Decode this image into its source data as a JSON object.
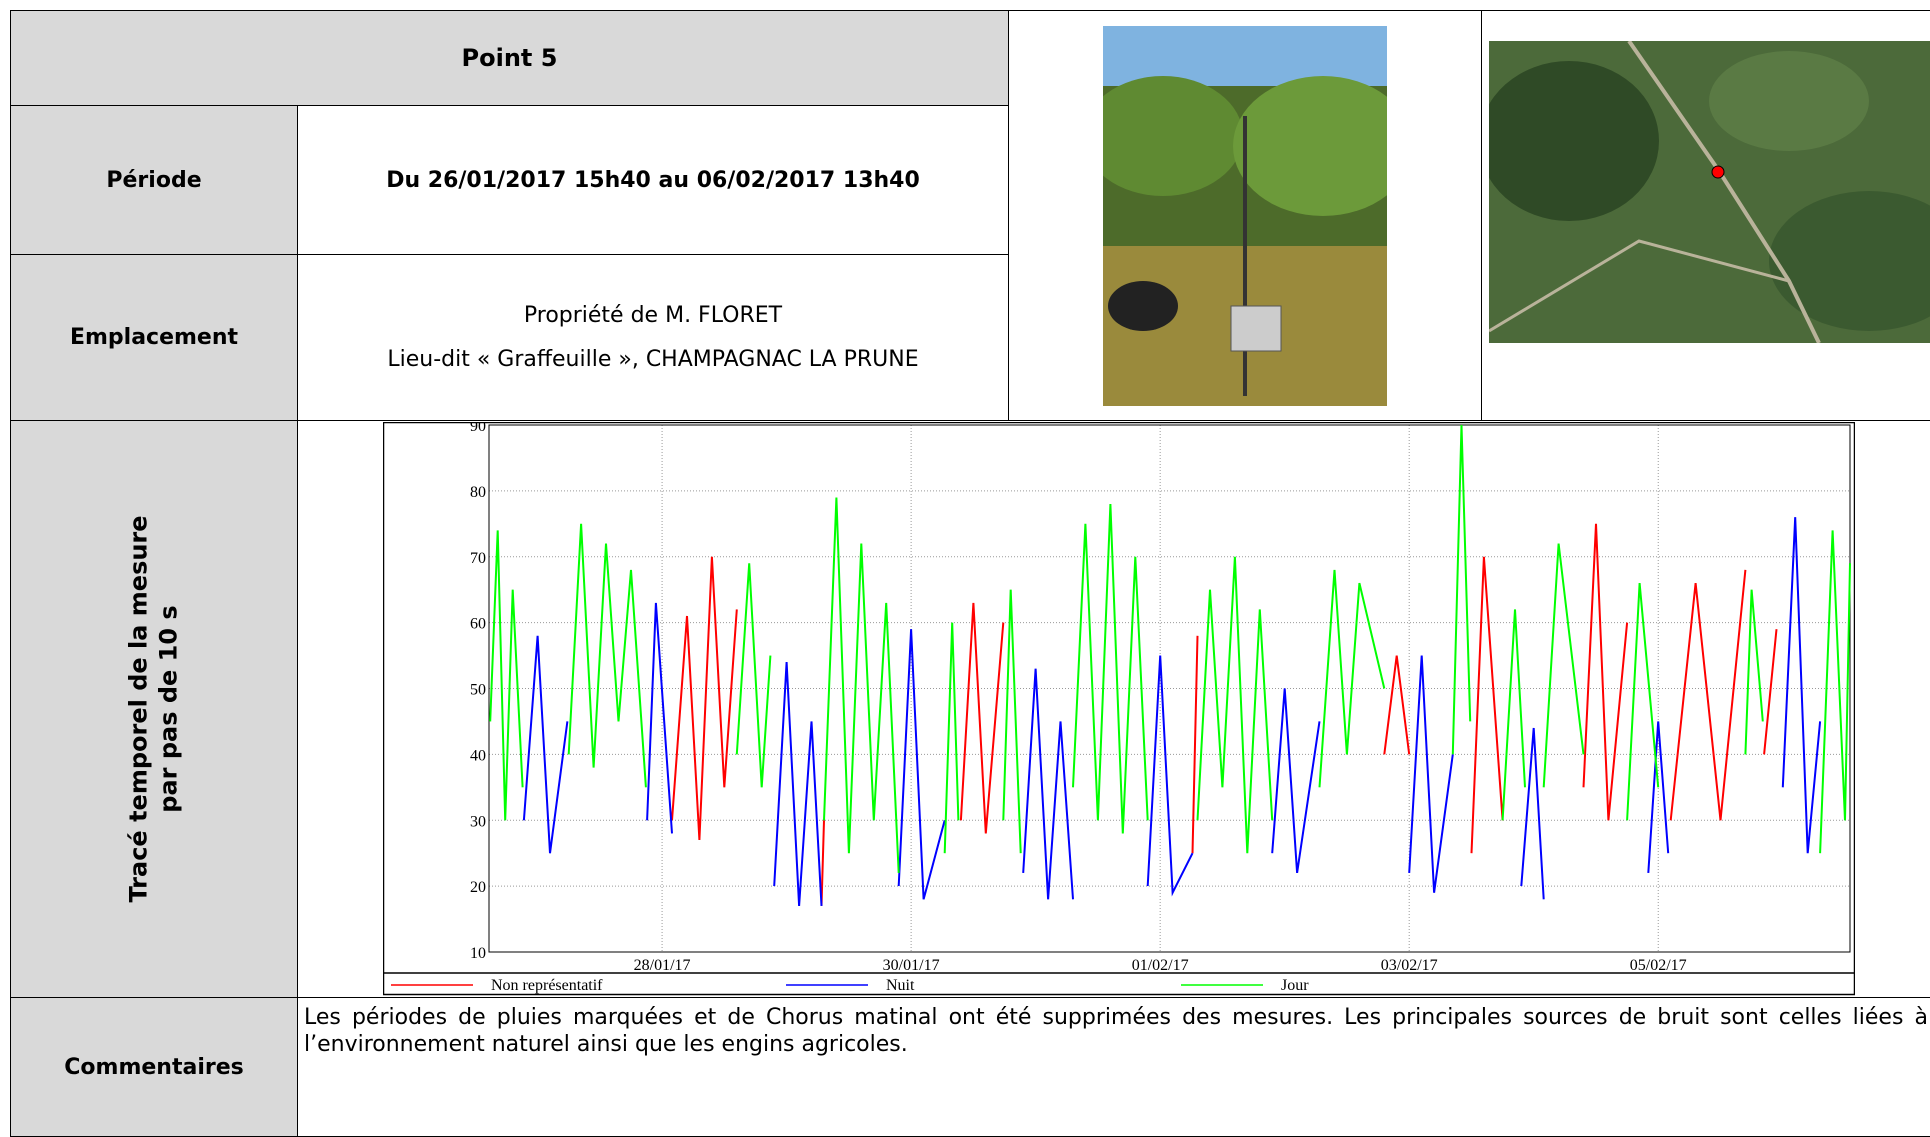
{
  "header": {
    "title": "Point 5"
  },
  "periode": {
    "label": "Période",
    "value": "Du 26/01/2017 15h40 au 06/02/2017 13h40"
  },
  "emplacement": {
    "label": "Emplacement",
    "lines": [
      "Propriété de M. FLORET",
      "Lieu-dit « Graffeuille », CHAMPAGNAC LA PRUNE"
    ]
  },
  "trace": {
    "label_lines": [
      "Tracé temporel de la mesure",
      "par pas de 10 s"
    ]
  },
  "chart_data": {
    "type": "line",
    "xlim": [
      26.61,
      37.54
    ],
    "xticks": [
      {
        "value": 28,
        "label": "28/01/17"
      },
      {
        "value": 30,
        "label": "30/01/17"
      },
      {
        "value": 32,
        "label": "01/02/17"
      },
      {
        "value": 34,
        "label": "03/02/17"
      },
      {
        "value": 36,
        "label": "05/02/17"
      }
    ],
    "ylim": [
      10,
      90
    ],
    "yticks": [
      10,
      20,
      30,
      40,
      50,
      60,
      70,
      80,
      90
    ],
    "grid": true,
    "legend": "bottom",
    "series": [
      {
        "name": "Non représentatif",
        "color": "#ff0000",
        "x": [
          28.08,
          28.2,
          28.3,
          28.4,
          28.5,
          28.6,
          null,
          29.28,
          29.3,
          null,
          30.4,
          30.5,
          30.6,
          30.74,
          null,
          32.26,
          32.3,
          null,
          33.8,
          33.9,
          34.0,
          null,
          34.5,
          34.6,
          34.75,
          null,
          35.4,
          35.5,
          35.6,
          35.75,
          null,
          36.1,
          36.3,
          36.5,
          36.7,
          null,
          36.85,
          36.95
        ],
        "values": [
          30,
          61,
          27,
          70,
          35,
          62,
          null,
          17,
          30,
          null,
          30,
          63,
          28,
          60,
          null,
          25,
          58,
          null,
          40,
          55,
          40,
          null,
          25,
          70,
          30,
          null,
          35,
          75,
          30,
          60,
          null,
          30,
          66,
          30,
          68,
          null,
          40,
          59
        ]
      },
      {
        "name": "Nuit",
        "color": "#0000ff",
        "x": [
          26.89,
          27.0,
          27.1,
          27.24,
          null,
          27.88,
          27.95,
          28.08,
          null,
          28.9,
          29.0,
          29.1,
          29.2,
          29.28,
          null,
          29.9,
          30.0,
          30.1,
          30.27,
          null,
          30.9,
          31.0,
          31.1,
          31.2,
          31.3,
          null,
          31.9,
          32.0,
          32.1,
          32.26,
          null,
          32.9,
          33.0,
          33.1,
          33.28,
          null,
          34.0,
          34.1,
          34.2,
          34.35,
          null,
          34.9,
          35.0,
          35.08,
          null,
          35.92,
          36.0,
          36.08,
          null,
          37.0,
          37.1,
          37.2,
          37.3
        ],
        "values": [
          30,
          58,
          25,
          45,
          null,
          30,
          63,
          28,
          null,
          20,
          54,
          17,
          45,
          17,
          null,
          20,
          59,
          18,
          30,
          null,
          22,
          53,
          18,
          45,
          18,
          null,
          20,
          55,
          19,
          25,
          null,
          25,
          50,
          22,
          45,
          null,
          22,
          55,
          19,
          40,
          null,
          20,
          44,
          18,
          null,
          22,
          45,
          25,
          null,
          35,
          76,
          25,
          45
        ]
      },
      {
        "name": "Jour",
        "color": "#00ff00",
        "x": [
          26.62,
          26.68,
          26.74,
          26.8,
          26.88,
          null,
          27.25,
          27.35,
          27.45,
          27.55,
          27.65,
          27.75,
          27.87,
          null,
          28.6,
          28.7,
          28.8,
          28.87,
          null,
          29.3,
          29.4,
          29.5,
          29.6,
          29.7,
          29.8,
          29.9,
          null,
          30.27,
          30.33,
          30.38,
          null,
          30.74,
          30.8,
          30.88,
          null,
          31.3,
          31.4,
          31.5,
          31.6,
          31.7,
          31.8,
          31.9,
          null,
          32.3,
          32.4,
          32.5,
          32.6,
          32.7,
          32.8,
          32.9,
          null,
          33.28,
          33.4,
          33.5,
          33.6,
          33.8,
          null,
          34.35,
          34.42,
          34.49,
          null,
          34.75,
          34.85,
          34.93,
          null,
          35.08,
          35.2,
          35.4,
          null,
          35.75,
          35.85,
          36.0,
          null,
          36.7,
          36.75,
          36.84,
          null,
          37.3,
          37.4,
          37.5,
          37.54
        ],
        "values": [
          45,
          74,
          30,
          65,
          35,
          null,
          40,
          75,
          38,
          72,
          45,
          68,
          35,
          null,
          40,
          69,
          35,
          55,
          null,
          30,
          79,
          25,
          72,
          30,
          63,
          22,
          null,
          25,
          60,
          30,
          null,
          30,
          65,
          25,
          null,
          35,
          75,
          30,
          78,
          28,
          70,
          30,
          null,
          30,
          65,
          35,
          70,
          25,
          62,
          30,
          null,
          35,
          68,
          40,
          66,
          50,
          null,
          40,
          90,
          45,
          null,
          30,
          62,
          35,
          null,
          35,
          72,
          40,
          null,
          30,
          66,
          35,
          null,
          40,
          65,
          45,
          null,
          25,
          74,
          30,
          69
        ]
      }
    ]
  },
  "comments": {
    "label": "Commentaires",
    "text": "Les périodes de pluies marquées et de Chorus matinal ont été supprimées des mesures. Les principales sources de bruit sont celles liées à l’environnement naturel ainsi que les engins agricoles."
  }
}
